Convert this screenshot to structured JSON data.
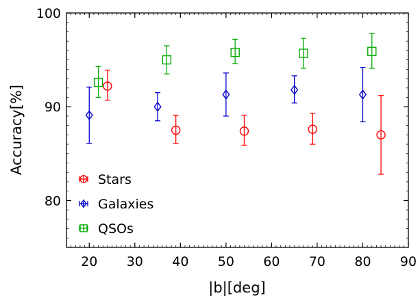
{
  "chart_data": {
    "type": "scatter",
    "xlabel": "|b|[deg]",
    "ylabel": "Accuracy[%]",
    "xlim": [
      15,
      90
    ],
    "ylim": [
      75,
      100
    ],
    "xticks": [
      20,
      30,
      40,
      50,
      60,
      70,
      80,
      90
    ],
    "yticks": [
      80,
      90,
      100
    ],
    "grid": false,
    "legend_position": "lower-left",
    "series": [
      {
        "name": "Stars",
        "marker": "circle",
        "color": "#ff0000",
        "points": [
          {
            "x": 24,
            "y": 92.2,
            "ylow": 90.7,
            "yhigh": 93.9
          },
          {
            "x": 39,
            "y": 87.5,
            "ylow": 86.1,
            "yhigh": 89.1
          },
          {
            "x": 54,
            "y": 87.4,
            "ylow": 85.9,
            "yhigh": 89.1
          },
          {
            "x": 69,
            "y": 87.6,
            "ylow": 86.0,
            "yhigh": 89.3
          },
          {
            "x": 84,
            "y": 87.0,
            "ylow": 82.8,
            "yhigh": 91.2
          }
        ]
      },
      {
        "name": "Galaxies",
        "marker": "diamond",
        "color": "#0000cc",
        "points": [
          {
            "x": 20,
            "y": 89.1,
            "ylow": 86.1,
            "yhigh": 92.1
          },
          {
            "x": 35,
            "y": 90.0,
            "ylow": 88.5,
            "yhigh": 91.5
          },
          {
            "x": 50,
            "y": 91.3,
            "ylow": 89.0,
            "yhigh": 93.6
          },
          {
            "x": 65,
            "y": 91.8,
            "ylow": 90.4,
            "yhigh": 93.3
          },
          {
            "x": 80,
            "y": 91.3,
            "ylow": 88.4,
            "yhigh": 94.2
          }
        ]
      },
      {
        "name": "QSOs",
        "marker": "square",
        "color": "#00aa00",
        "points": [
          {
            "x": 22,
            "y": 92.6,
            "ylow": 91.0,
            "yhigh": 94.3
          },
          {
            "x": 37,
            "y": 95.0,
            "ylow": 93.5,
            "yhigh": 96.5
          },
          {
            "x": 52,
            "y": 95.8,
            "ylow": 94.6,
            "yhigh": 97.2
          },
          {
            "x": 67,
            "y": 95.7,
            "ylow": 94.1,
            "yhigh": 97.3
          },
          {
            "x": 82,
            "y": 95.9,
            "ylow": 94.1,
            "yhigh": 97.8
          }
        ]
      }
    ]
  }
}
